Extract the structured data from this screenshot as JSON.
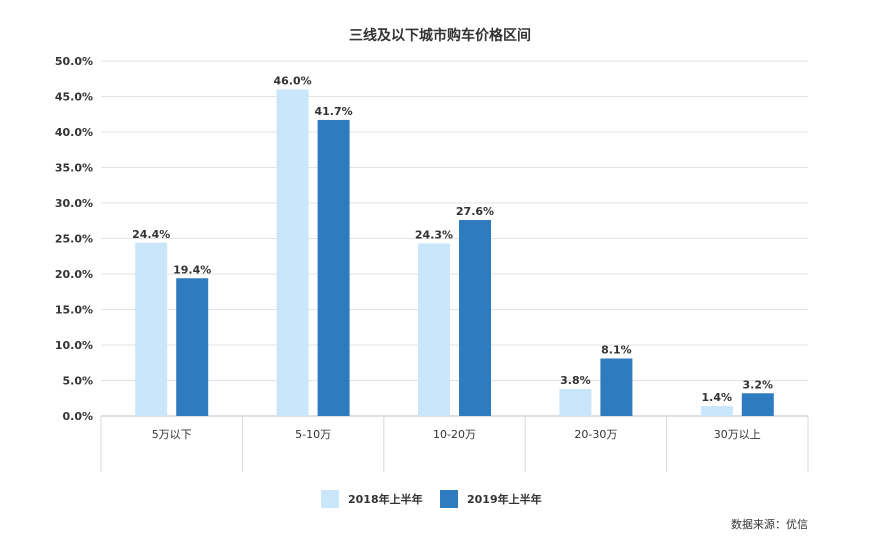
{
  "chart_data": {
    "type": "bar",
    "title": "三线及以下城市购车价格区间",
    "categories": [
      "5万以下",
      "5-10万",
      "10-20万",
      "20-30万",
      "30万以上"
    ],
    "series": [
      {
        "name": "2018年上半年",
        "color": "#c9e6fa",
        "values": [
          24.4,
          46.0,
          24.3,
          3.8,
          1.4
        ]
      },
      {
        "name": "2019年上半年",
        "color": "#2f7bbf",
        "values": [
          19.4,
          41.7,
          27.6,
          8.1,
          3.2
        ]
      }
    ],
    "ylim": [
      0,
      50
    ],
    "yticks": [
      0,
      5,
      10,
      15,
      20,
      25,
      30,
      35,
      40,
      45,
      50
    ],
    "ytick_format": "percent_1dp",
    "grid": true,
    "legend_position": "bottom",
    "xlabel": "",
    "ylabel": ""
  },
  "source": "数据来源：优信"
}
